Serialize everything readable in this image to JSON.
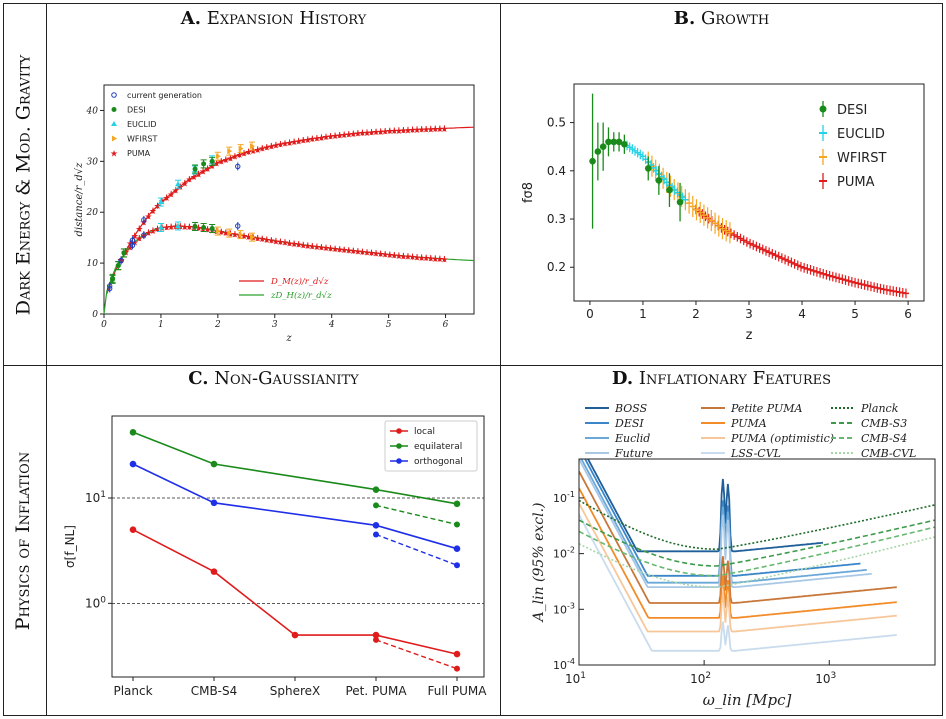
{
  "row_labels": [
    "Dark Energy & Mod. Gravity",
    "Physics of Inflation"
  ],
  "panels": {
    "a": {
      "letter": "A.",
      "name": "Expansion History"
    },
    "b": {
      "letter": "B.",
      "name": "Growth"
    },
    "c": {
      "letter": "C.",
      "name": "Non-Gaussianity"
    },
    "d": {
      "letter": "D.",
      "name": "Inflationary Features"
    }
  },
  "chart_data": [
    {
      "id": "a",
      "type": "line",
      "xlabel": "z",
      "ylabel": "distance/r_d√z",
      "xlim": [
        0,
        6.5
      ],
      "ylim": [
        0,
        45
      ],
      "xticks": [
        0,
        1,
        2,
        3,
        4,
        5,
        6
      ],
      "yticks": [
        0,
        10,
        20,
        30,
        40
      ],
      "legend_markers": [
        "current generation",
        "DESI",
        "EUCLID",
        "WFIRST",
        "PUMA"
      ],
      "legend_lines": [
        "D_M(z)/r_d√z",
        "zD_H(z)/r_d√z"
      ],
      "colors": {
        "current": "#1f3fbf",
        "DESI": "#1a8a1a",
        "EUCLID": "#22d3e6",
        "WFIRST": "#f5a623",
        "PUMA": "#e01b1b",
        "DM": "#e01b1b",
        "DH": "#2ca02c"
      },
      "curves": {
        "DM_z": [
          0.05,
          0.2,
          0.4,
          0.6,
          0.8,
          1.0,
          1.5,
          2.0,
          2.5,
          3.0,
          3.5,
          4.0,
          4.5,
          5.0,
          5.5,
          6.0,
          6.5
        ],
        "DM": [
          4.0,
          8.5,
          12.8,
          16.5,
          19.6,
          22.0,
          26.5,
          29.8,
          31.8,
          33.2,
          34.2,
          35.0,
          35.6,
          36.0,
          36.3,
          36.5,
          36.7
        ],
        "DH_z": [
          0.0,
          0.05,
          0.2,
          0.4,
          0.6,
          0.8,
          1.0,
          1.3,
          1.6,
          2.0,
          2.5,
          3.0,
          3.5,
          4.0,
          4.5,
          5.0,
          5.5,
          6.0,
          6.5
        ],
        "DH": [
          0.0,
          4.5,
          9.0,
          12.5,
          14.8,
          16.2,
          17.0,
          17.3,
          17.1,
          16.3,
          15.3,
          14.4,
          13.6,
          12.9,
          12.3,
          11.7,
          11.2,
          10.8,
          10.5
        ]
      },
      "current_generation": [
        {
          "z": 0.1,
          "DM": 5.5,
          "DH": 5.0
        },
        {
          "z": 0.3,
          "DM": 10.5,
          "DH": 10.5
        },
        {
          "z": 0.5,
          "DM": 14.5,
          "DH": 13.5
        },
        {
          "z": 0.7,
          "DM": 18.5,
          "DH": 15.5
        },
        {
          "z": 2.35,
          "DM": 29.0,
          "DH": 17.3
        }
      ],
      "DESI": {
        "z": [
          0.15,
          0.25,
          0.35,
          1.6,
          1.75,
          1.9
        ],
        "DM": [
          7.0,
          9.5,
          12.0,
          28.5,
          29.5,
          30.0
        ],
        "DH": [
          6.8,
          9.5,
          12.0,
          17.2,
          17.0,
          16.8
        ]
      },
      "EUCLID": {
        "z": [
          1.0,
          1.3,
          1.6,
          1.9
        ],
        "DM": [
          22.0,
          25.5,
          28.3,
          30.3
        ],
        "DH": [
          17.0,
          17.3,
          17.2,
          16.8
        ]
      },
      "WFIRST": {
        "z": [
          2.0,
          2.2,
          2.4,
          2.6
        ],
        "DM": [
          31.0,
          32.0,
          32.5,
          33.0
        ],
        "DH": [
          16.3,
          15.9,
          15.6,
          15.1
        ]
      },
      "PUMA_z_range": [
        0.3,
        6.0
      ]
    },
    {
      "id": "b",
      "type": "scatter",
      "xlabel": "z",
      "ylabel": "fσ8",
      "xlim": [
        -0.3,
        6.3
      ],
      "ylim": [
        0.13,
        0.58
      ],
      "xticks": [
        0,
        1,
        2,
        3,
        4,
        5,
        6
      ],
      "yticks": [
        0.2,
        0.3,
        0.4,
        0.5
      ],
      "legend": [
        "DESI",
        "EUCLID",
        "WFIRST",
        "PUMA"
      ],
      "colors": {
        "DESI": "#1a8a1a",
        "EUCLID": "#22d3e6",
        "WFIRST": "#f5a623",
        "PUMA": "#e01b1b"
      },
      "DESI": {
        "z": [
          0.05,
          0.15,
          0.25,
          0.35,
          0.45,
          0.55,
          0.65,
          1.1,
          1.3,
          1.5,
          1.7
        ],
        "fs8": [
          0.42,
          0.44,
          0.45,
          0.46,
          0.46,
          0.46,
          0.455,
          0.405,
          0.38,
          0.36,
          0.335
        ],
        "err": [
          0.14,
          0.06,
          0.05,
          0.03,
          0.02,
          0.02,
          0.02,
          0.025,
          0.03,
          0.035,
          0.04
        ]
      },
      "EUCLID_z_range": [
        0.7,
        1.8
      ],
      "WFIRST_z_range": [
        1.1,
        2.7
      ],
      "PUMA_z_range": [
        2.0,
        6.0
      ],
      "curve": {
        "z": [
          0.0,
          0.3,
          0.6,
          1.0,
          1.5,
          2.0,
          2.5,
          3.0,
          3.5,
          4.0,
          4.5,
          5.0,
          5.5,
          6.0
        ],
        "fs8": [
          0.42,
          0.45,
          0.46,
          0.43,
          0.37,
          0.32,
          0.28,
          0.25,
          0.225,
          0.2,
          0.183,
          0.168,
          0.155,
          0.145
        ]
      }
    },
    {
      "id": "c",
      "type": "line",
      "ylabel": "σ[f_NL]",
      "yscale": "log",
      "ylim": [
        0.2,
        60
      ],
      "categories": [
        "Planck",
        "CMB-S4",
        "SphereX",
        "Pet. PUMA",
        "Full PUMA"
      ],
      "ytick_labels": [
        "10^0",
        "10^1"
      ],
      "hlines": [
        1,
        10
      ],
      "legend": [
        "local",
        "equilateral",
        "orthogonal"
      ],
      "series": [
        {
          "name": "local",
          "color": "#e01b1b",
          "values": [
            5.0,
            2.0,
            0.5,
            0.5,
            0.33
          ],
          "dashed": {
            "from": 3,
            "values": [
              0.45,
              0.24
            ]
          }
        },
        {
          "name": "equilateral",
          "color": "#1a8a1a",
          "values": [
            42,
            21,
            null,
            12,
            8.8
          ],
          "dashed": {
            "from": 3,
            "values": [
              8.5,
              5.6
            ]
          }
        },
        {
          "name": "orthogonal",
          "color": "#1f2fe8",
          "values": [
            21,
            9.0,
            null,
            5.5,
            3.3
          ],
          "dashed": {
            "from": 3,
            "values": [
              4.5,
              2.3
            ]
          }
        }
      ]
    },
    {
      "id": "d",
      "type": "line",
      "xlabel": "ω_lin [Mpc]",
      "ylabel": "A_lin (95% excl.)",
      "xscale": "log",
      "yscale": "log",
      "xlim": [
        10,
        7000
      ],
      "ylim": [
        0.0001,
        0.5
      ],
      "xtick_labels": [
        "10^1",
        "10^2",
        "10^3"
      ],
      "ytick_labels": [
        "10^-4",
        "10^-3",
        "10^-2",
        "10^-1"
      ],
      "legend": [
        "BOSS",
        "DESI",
        "Euclid",
        "Future",
        "Petite PUMA",
        "PUMA",
        "PUMA (optimistic)",
        "LSS-CVL",
        "Planck",
        "CMB-S3",
        "CMB-S4",
        "CMB-CVL"
      ],
      "series": [
        {
          "name": "BOSS",
          "color": "#1f5f9a",
          "style": "solid",
          "floor": 0.011,
          "xmin": 10,
          "xmax": 900,
          "lowx_value": 1.0,
          "peak": 0.22
        },
        {
          "name": "DESI",
          "color": "#3a86c8",
          "style": "solid",
          "floor": 0.004,
          "xmin": 10,
          "xmax": 1800,
          "lowx_value": 0.8,
          "peak": 0.09
        },
        {
          "name": "Euclid",
          "color": "#6aa8da",
          "style": "solid",
          "floor": 0.003,
          "xmin": 10,
          "xmax": 2000,
          "lowx_value": 0.6,
          "peak": 0.07
        },
        {
          "name": "Future",
          "color": "#a9c8e6",
          "style": "solid",
          "floor": 0.0025,
          "xmin": 10,
          "xmax": 2200,
          "lowx_value": 0.5,
          "peak": 0.05
        },
        {
          "name": "Petite PUMA",
          "color": "#c8773a",
          "style": "solid",
          "floor": 0.0013,
          "xmin": 10,
          "xmax": 3500,
          "lowx_value": 0.3,
          "peak": 0.009
        },
        {
          "name": "PUMA",
          "color": "#f28c28",
          "style": "solid",
          "floor": 0.0007,
          "xmin": 10,
          "xmax": 3500,
          "lowx_value": 0.15,
          "peak": 0.004
        },
        {
          "name": "PUMA (optimistic)",
          "color": "#f7c79a",
          "style": "solid",
          "floor": 0.0004,
          "xmin": 10,
          "xmax": 3500,
          "lowx_value": 0.08,
          "peak": 0.002
        },
        {
          "name": "LSS-CVL",
          "color": "#c9dcee",
          "style": "solid",
          "floor": 0.00018,
          "xmin": 10,
          "xmax": 3500,
          "lowx_value": 0.05,
          "peak": 0.0006
        },
        {
          "name": "Planck",
          "color": "#1e6b2b",
          "style": "dotted",
          "start": 0.09,
          "min": 0.012,
          "end": 0.075
        },
        {
          "name": "CMB-S3",
          "color": "#3c9a4a",
          "style": "dashed",
          "start": 0.04,
          "min": 0.006,
          "end": 0.04
        },
        {
          "name": "CMB-S4",
          "color": "#66b870",
          "style": "dashed",
          "start": 0.025,
          "min": 0.004,
          "end": 0.03
        },
        {
          "name": "CMB-CVL",
          "color": "#a8d6a8",
          "style": "dotted",
          "start": 0.015,
          "min": 0.0025,
          "end": 0.02
        }
      ]
    }
  ]
}
